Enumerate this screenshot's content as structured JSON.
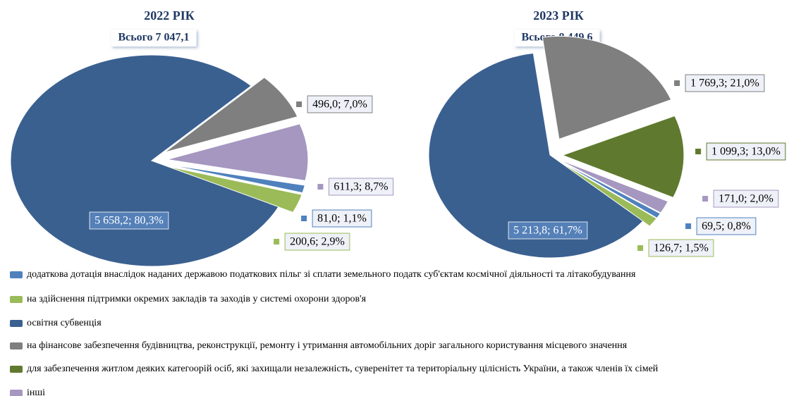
{
  "legend": [
    {
      "name": "додаткова дотація внаслідок наданих державою податкових пільг зі сплати земельного податк суб'єктам космічної діяльності та літакобудування",
      "color": "#4f81bd"
    },
    {
      "name": "на здійснення підтримки окремих закладів та заходів у системі охорони здоров'я",
      "color": "#9bbb59"
    },
    {
      "name": "освітня субвенція",
      "color": "#3a6090"
    },
    {
      "name": "на фінансове забезпечення будівництва, реконструкції, ремонту і утримання автомобільних доріг загального користування місцевого значення",
      "color": "#7f7f7f"
    },
    {
      "name": "для забезпечення житлом деяких категоорій осіб, які захищали незалежність, суверенітет та територіальну цілісність України, а також членів їх сімей",
      "color": "#5f7a2e"
    },
    {
      "name": "інші",
      "color": "#a597c0"
    }
  ],
  "chart_data": [
    {
      "type": "pie",
      "title": "2022 РІК",
      "subtitle": "Всього 7 047,1",
      "values": [
        81.0,
        200.6,
        5658.2,
        496.0,
        null,
        611.3
      ],
      "value_labels": [
        "81,0; 1,1%",
        "200,6; 2,9%",
        "5 658,2; 80,3%",
        "496,0; 7,0%",
        null,
        "611,3; 8,7%"
      ]
    },
    {
      "type": "pie",
      "title": "2023 РІК",
      "subtitle": "Всього 8 449,6",
      "values": [
        69.5,
        126.7,
        5213.8,
        1769.3,
        1099.3,
        171.0
      ],
      "value_labels": [
        "69,5; 0,8%",
        "126,7; 1,5%",
        "5 213,8; 61,7%",
        "1 769,3; 21,0%",
        "1 099,3; 13,0%",
        "171,0; 2,0%"
      ]
    }
  ]
}
